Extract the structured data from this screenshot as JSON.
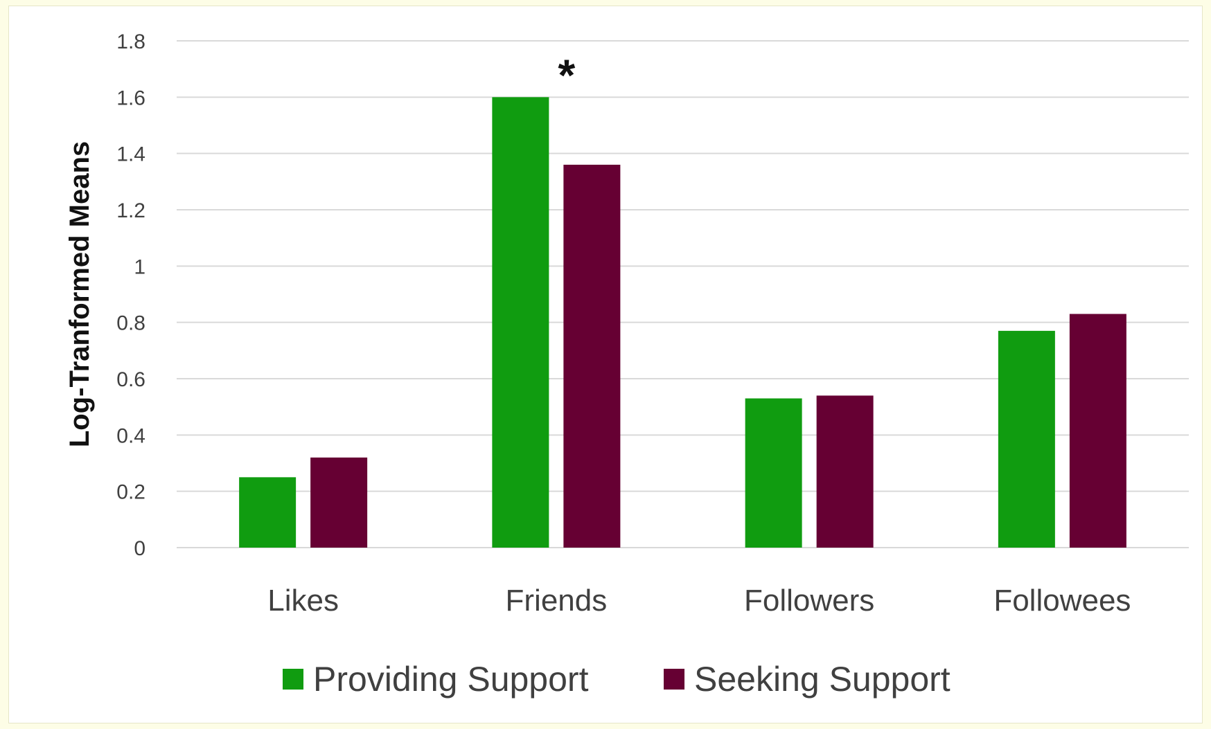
{
  "chart_data": {
    "type": "bar",
    "title": "",
    "xlabel": "",
    "ylabel": "Log-Tranformed Means",
    "categories": [
      "Likes",
      "Friends",
      "Followers",
      "Followees"
    ],
    "series": [
      {
        "name": "Providing Support",
        "color": "#109c10",
        "values": [
          0.25,
          1.6,
          0.53,
          0.77
        ]
      },
      {
        "name": "Seeking Support",
        "color": "#660033",
        "values": [
          0.32,
          1.36,
          0.54,
          0.83
        ]
      }
    ],
    "ylim": [
      0,
      1.8
    ],
    "yticks": [
      "0",
      "0.2",
      "0.4",
      "0.6",
      "0.8",
      "1",
      "1.2",
      "1.4",
      "1.6",
      "1.8"
    ],
    "grid": true,
    "legend_position": "bottom",
    "annotations": [
      {
        "text": "*",
        "category": "Friends"
      }
    ]
  }
}
